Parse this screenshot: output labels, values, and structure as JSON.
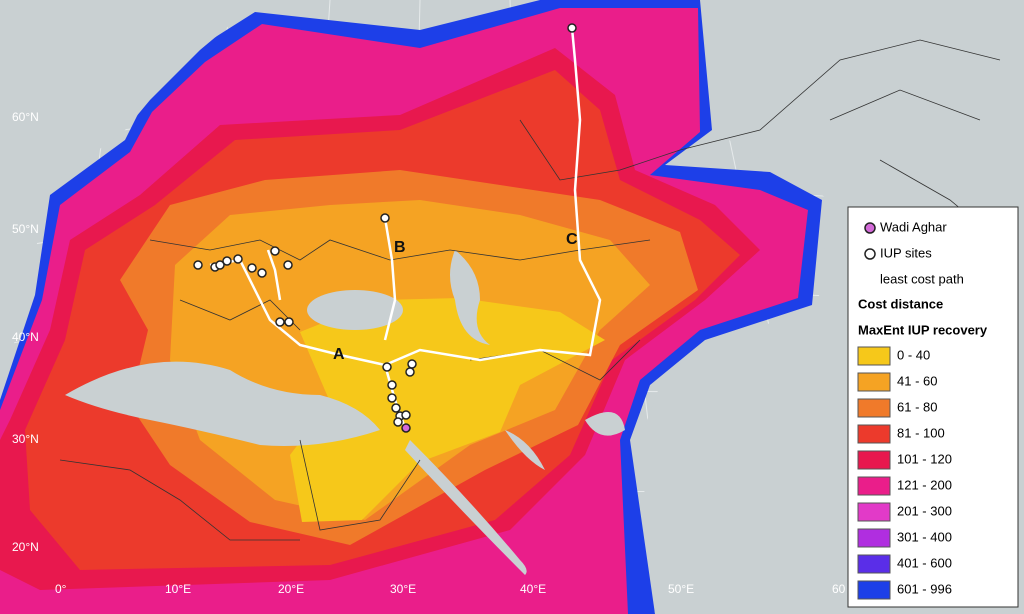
{
  "map": {
    "latitude_labels": [
      "60°N",
      "50°N",
      "40°N",
      "30°N",
      "20°N"
    ],
    "longitude_labels": [
      "0°",
      "10°E",
      "20°E",
      "30°E",
      "40°E",
      "50°E",
      "60"
    ],
    "path_labels": [
      "A",
      "B",
      "C"
    ],
    "legend": {
      "markers": [
        {
          "label": "Wadi Aghar",
          "color": "#d36ad8"
        },
        {
          "label": "IUP sites",
          "color": "#ffffff"
        },
        {
          "label": "least cost path",
          "color": "#ffffff"
        }
      ],
      "heading_1": "Cost distance",
      "heading_2": "MaxEnt IUP recovery",
      "classes": [
        {
          "label": "0 - 40",
          "color": "#f6c81a"
        },
        {
          "label": "41 - 60",
          "color": "#f5a323"
        },
        {
          "label": "61 - 80",
          "color": "#f07a2a"
        },
        {
          "label": "81 - 100",
          "color": "#ec3a2c"
        },
        {
          "label": "101 - 120",
          "color": "#e8184e"
        },
        {
          "label": "121 - 200",
          "color": "#ea1e8a"
        },
        {
          "label": "201 - 300",
          "color": "#e23ac8"
        },
        {
          "label": "301 - 400",
          "color": "#b02ee0"
        },
        {
          "label": "401 - 600",
          "color": "#5a2ee8"
        },
        {
          "label": "601 - 996",
          "color": "#1d3fe8"
        }
      ]
    }
  }
}
